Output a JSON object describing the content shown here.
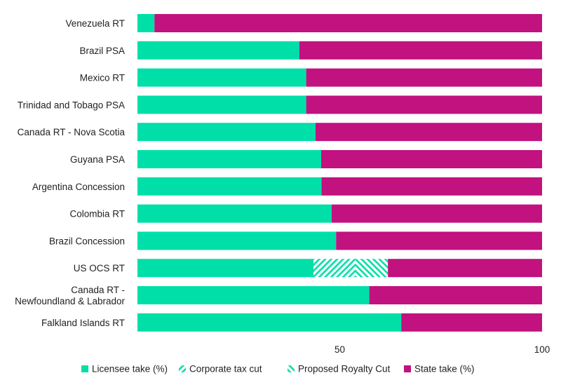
{
  "chart_data": {
    "type": "bar",
    "orientation": "horizontal",
    "stacked": true,
    "title": "",
    "xlabel": "",
    "ylabel": "",
    "xlim": [
      0,
      100
    ],
    "xticks": [
      "50",
      "100"
    ],
    "xtick_values": [
      50,
      100
    ],
    "grid": false,
    "legend_position": "bottom",
    "categories": [
      "Venezuela RT",
      "Brazil PSA",
      "Mexico RT",
      "Trinidad and Tobago PSA",
      "Canada RT - Nova Scotia",
      "Guyana PSA",
      "Argentina Concession",
      "Colombia RT",
      "Brazil Concession",
      "US OCS RT",
      "Canada RT - Newfoundland & Labrador",
      "Falkland Islands RT"
    ],
    "category_lines": [
      [
        "Venezuela RT"
      ],
      [
        "Brazil PSA"
      ],
      [
        "Mexico RT"
      ],
      [
        "Trinidad and Tobago PSA"
      ],
      [
        "Canada RT - Nova Scotia"
      ],
      [
        "Guyana PSA"
      ],
      [
        "Argentina Concession"
      ],
      [
        "Colombia RT"
      ],
      [
        "Brazil Concession"
      ],
      [
        "US OCS RT"
      ],
      [
        "Canada RT -",
        "Newfoundland & Labrador"
      ],
      [
        "Falkland Islands RT"
      ]
    ],
    "series": [
      {
        "name": "Licensee take (%)",
        "key": "licensee",
        "color": "#00dfa8",
        "pattern": "solid",
        "values": [
          4.2,
          40,
          41.7,
          41.7,
          44,
          45.4,
          45.5,
          48,
          49.1,
          43.5,
          57.3,
          65.2
        ]
      },
      {
        "name": "Corporate tax cut",
        "key": "corptax",
        "color": "#00dfa8",
        "pattern": "stripe-right",
        "values": [
          0,
          0,
          0,
          0,
          0,
          0,
          0,
          0,
          0,
          10.3,
          0,
          0
        ]
      },
      {
        "name": "Proposed Royalty Cut",
        "key": "royalty",
        "color": "#00dfa8",
        "pattern": "stripe-left",
        "values": [
          0,
          0,
          0,
          0,
          0,
          0,
          0,
          0,
          0,
          8.1,
          0,
          0
        ]
      },
      {
        "name": "State take (%)",
        "key": "state",
        "color": "#c1127f",
        "pattern": "solid",
        "values": [
          95.8,
          60,
          58.3,
          58.3,
          56,
          54.6,
          54.5,
          52,
          50.9,
          38.1,
          42.7,
          34.8
        ]
      }
    ]
  }
}
